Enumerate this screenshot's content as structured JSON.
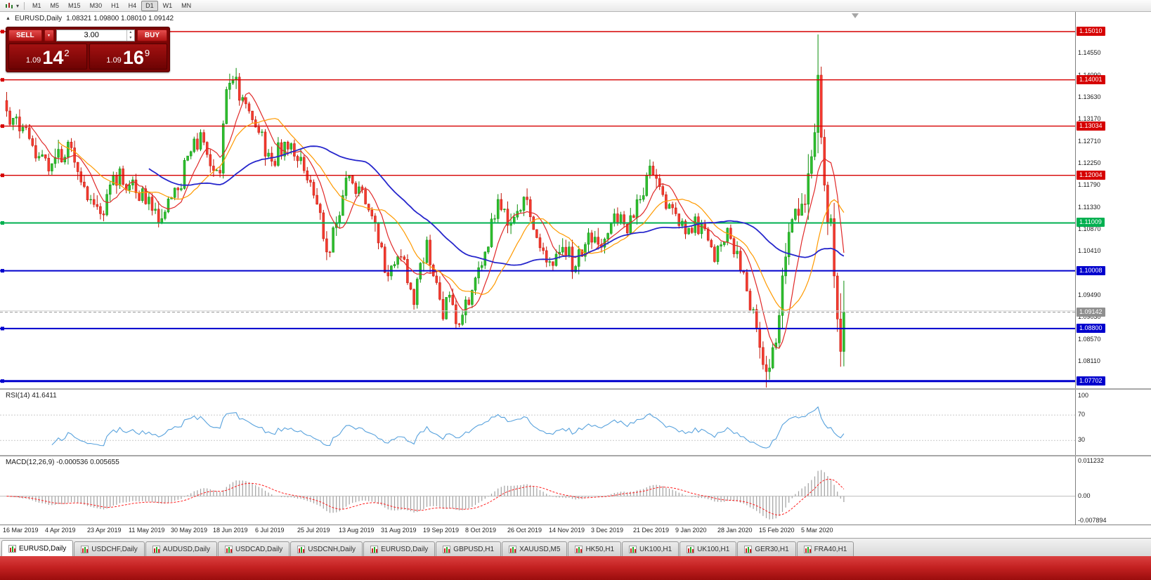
{
  "colors": {
    "up_fill": "#2fbf2f",
    "up_stroke": "#0c8f0c",
    "down_fill": "#f43b30",
    "down_stroke": "#c01508",
    "ma_fast": "#e02828",
    "ma_mid": "#ff9a00",
    "ma_slow": "#2626cc",
    "level_red": "#d60000",
    "level_green": "#00b050",
    "level_blue": "#0000cd",
    "bid_label_bg": "#8f8f8f",
    "rsi_line": "#58a2dd",
    "macd_hist": "#a0a0a0",
    "macd_signal": "#ff1f1f"
  },
  "toolbar": {
    "timeframes": [
      "M1",
      "M5",
      "M15",
      "M30",
      "H1",
      "H4",
      "D1",
      "W1",
      "MN"
    ],
    "active_timeframe": "D1"
  },
  "chart_header": {
    "symbol": "EURUSD,Daily",
    "ohlc": "1.08321 1.09800 1.08010 1.09142"
  },
  "trade_panel": {
    "sell_label": "SELL",
    "buy_label": "BUY",
    "volume": "3.00",
    "sell_price": {
      "prefix": "1.09",
      "big": "14",
      "sup": "2"
    },
    "buy_price": {
      "prefix": "1.09",
      "big": "16",
      "sup": "9"
    }
  },
  "chart_data": {
    "type": "candlestick",
    "symbol": "EURUSD",
    "period": "Daily",
    "ohlc_display": {
      "open": "1.08321",
      "high": "1.09800",
      "low": "1.08010",
      "close": "1.09142"
    },
    "levels": [
      {
        "price": 1.1501,
        "label": "1.15010",
        "color": "red"
      },
      {
        "price": 1.14001,
        "label": "1.14001",
        "color": "red"
      },
      {
        "price": 1.13034,
        "label": "1.13034",
        "color": "red"
      },
      {
        "price": 1.12004,
        "label": "1.12004",
        "color": "red"
      },
      {
        "price": 1.11009,
        "label": "1.11009",
        "color": "green"
      },
      {
        "price": 1.10008,
        "label": "1.10008",
        "color": "blue"
      },
      {
        "price": 1.088,
        "label": "1.08800",
        "color": "blue"
      },
      {
        "price": 1.07702,
        "label": "1.07702",
        "color": "blue"
      }
    ],
    "bid": {
      "price": 1.09142,
      "label": "1.09142"
    },
    "ask": {
      "price": 1.09169
    },
    "price_axis_ticks": [
      "1.14550",
      "1.14090",
      "1.13630",
      "1.13170",
      "1.12710",
      "1.12250",
      "1.11790",
      "1.11330",
      "1.10870",
      "1.10410",
      "1.09950",
      "1.09490",
      "1.09030",
      "1.08570",
      "1.08110"
    ],
    "x_axis_labels": [
      "16 Mar 2019",
      "4 Apr 2019",
      "23 Apr 2019",
      "11 May 2019",
      "30 May 2019",
      "18 Jun 2019",
      "6 Jul 2019",
      "25 Jul 2019",
      "13 Aug 2019",
      "31 Aug 2019",
      "19 Sep 2019",
      "8 Oct 2019",
      "26 Oct 2019",
      "14 Nov 2019",
      "3 Dec 2019",
      "21 Dec 2019",
      "9 Jan 2020",
      "28 Jan 2020",
      "15 Feb 2020",
      "5 Mar 2020"
    ],
    "candles": {
      "count": 260,
      "label_every": 13,
      "close_anchors": [
        [
          0,
          1.1335
        ],
        [
          6,
          1.13
        ],
        [
          10,
          1.124
        ],
        [
          14,
          1.1225
        ],
        [
          20,
          1.1258
        ],
        [
          26,
          1.115
        ],
        [
          29,
          1.112
        ],
        [
          33,
          1.12
        ],
        [
          38,
          1.118
        ],
        [
          44,
          1.1155
        ],
        [
          48,
          1.111
        ],
        [
          53,
          1.117
        ],
        [
          57,
          1.125
        ],
        [
          60,
          1.129
        ],
        [
          63,
          1.122
        ],
        [
          66,
          1.1205
        ],
        [
          68,
          1.138
        ],
        [
          70,
          1.14
        ],
        [
          74,
          1.135
        ],
        [
          78,
          1.129
        ],
        [
          82,
          1.123
        ],
        [
          86,
          1.127
        ],
        [
          92,
          1.121
        ],
        [
          96,
          1.114
        ],
        [
          99,
          1.104
        ],
        [
          102,
          1.11
        ],
        [
          105,
          1.1195
        ],
        [
          110,
          1.117
        ],
        [
          114,
          1.11
        ],
        [
          118,
          1.099
        ],
        [
          122,
          1.103
        ],
        [
          126,
          1.093
        ],
        [
          130,
          1.1065
        ],
        [
          132,
          1.099
        ],
        [
          135,
          1.09
        ],
        [
          137,
          1.095
        ],
        [
          139,
          1.089
        ],
        [
          142,
          1.094
        ],
        [
          144,
          1.096
        ],
        [
          148,
          1.104
        ],
        [
          152,
          1.115
        ],
        [
          156,
          1.11
        ],
        [
          160,
          1.1155
        ],
        [
          164,
          1.107
        ],
        [
          168,
          1.102
        ],
        [
          172,
          1.105
        ],
        [
          176,
          1.101
        ],
        [
          180,
          1.108
        ],
        [
          184,
          1.105
        ],
        [
          188,
          1.112
        ],
        [
          192,
          1.108
        ],
        [
          196,
          1.115
        ],
        [
          199,
          1.122
        ],
        [
          203,
          1.116
        ],
        [
          207,
          1.112
        ],
        [
          211,
          1.109
        ],
        [
          215,
          1.11
        ],
        [
          219,
          1.102
        ],
        [
          223,
          1.109
        ],
        [
          227,
          1.1
        ],
        [
          231,
          1.092
        ],
        [
          235,
          1.079
        ],
        [
          238,
          1.085
        ],
        [
          241,
          1.103
        ],
        [
          244,
          1.113
        ],
        [
          247,
          1.114
        ],
        [
          250,
          1.129
        ],
        [
          251,
          1.141
        ],
        [
          252,
          1.128
        ],
        [
          253,
          1.118
        ],
        [
          254,
          1.11
        ],
        [
          255,
          1.111
        ],
        [
          256,
          1.099
        ],
        [
          257,
          1.09
        ],
        [
          258,
          1.0832
        ],
        [
          259,
          1.09142
        ]
      ],
      "spike": {
        "index": 251,
        "high": 1.1495
      },
      "last": {
        "open": 1.08321,
        "high": 1.098,
        "low": 1.0801,
        "close": 1.09142
      }
    },
    "moving_averages": [
      {
        "period": 8,
        "color": "ma_fast"
      },
      {
        "period": 17,
        "color": "ma_mid"
      },
      {
        "period": 45,
        "color": "ma_slow"
      }
    ],
    "rsi": {
      "label": "RSI(14) 41.6411",
      "period": 14,
      "value": "41.6411",
      "axis": [
        "100",
        "70",
        "30"
      ],
      "axis_values": [
        100,
        70,
        30
      ],
      "level_lines": [
        70,
        30
      ]
    },
    "macd": {
      "label": "MACD(12,26,9) -0.000536 0.005655",
      "fast": 12,
      "slow": 26,
      "signal": 9,
      "values": [
        "-0.000536",
        "0.005655"
      ],
      "axis": [
        "0.011232",
        "0.00",
        "-0.007894"
      ],
      "axis_values": [
        0.011232,
        0,
        -0.007894
      ]
    }
  },
  "bottom_tabs": {
    "active_index": 0,
    "items": [
      "EURUSD,Daily",
      "USDCHF,Daily",
      "AUDUSD,Daily",
      "USDCAD,Daily",
      "USDCNH,Daily",
      "EURUSD,Daily",
      "GBPUSD,H1",
      "XAUUSD,M5",
      "HK50,H1",
      "UK100,H1",
      "UK100,H1",
      "GER30,H1",
      "FRA40,H1"
    ]
  }
}
